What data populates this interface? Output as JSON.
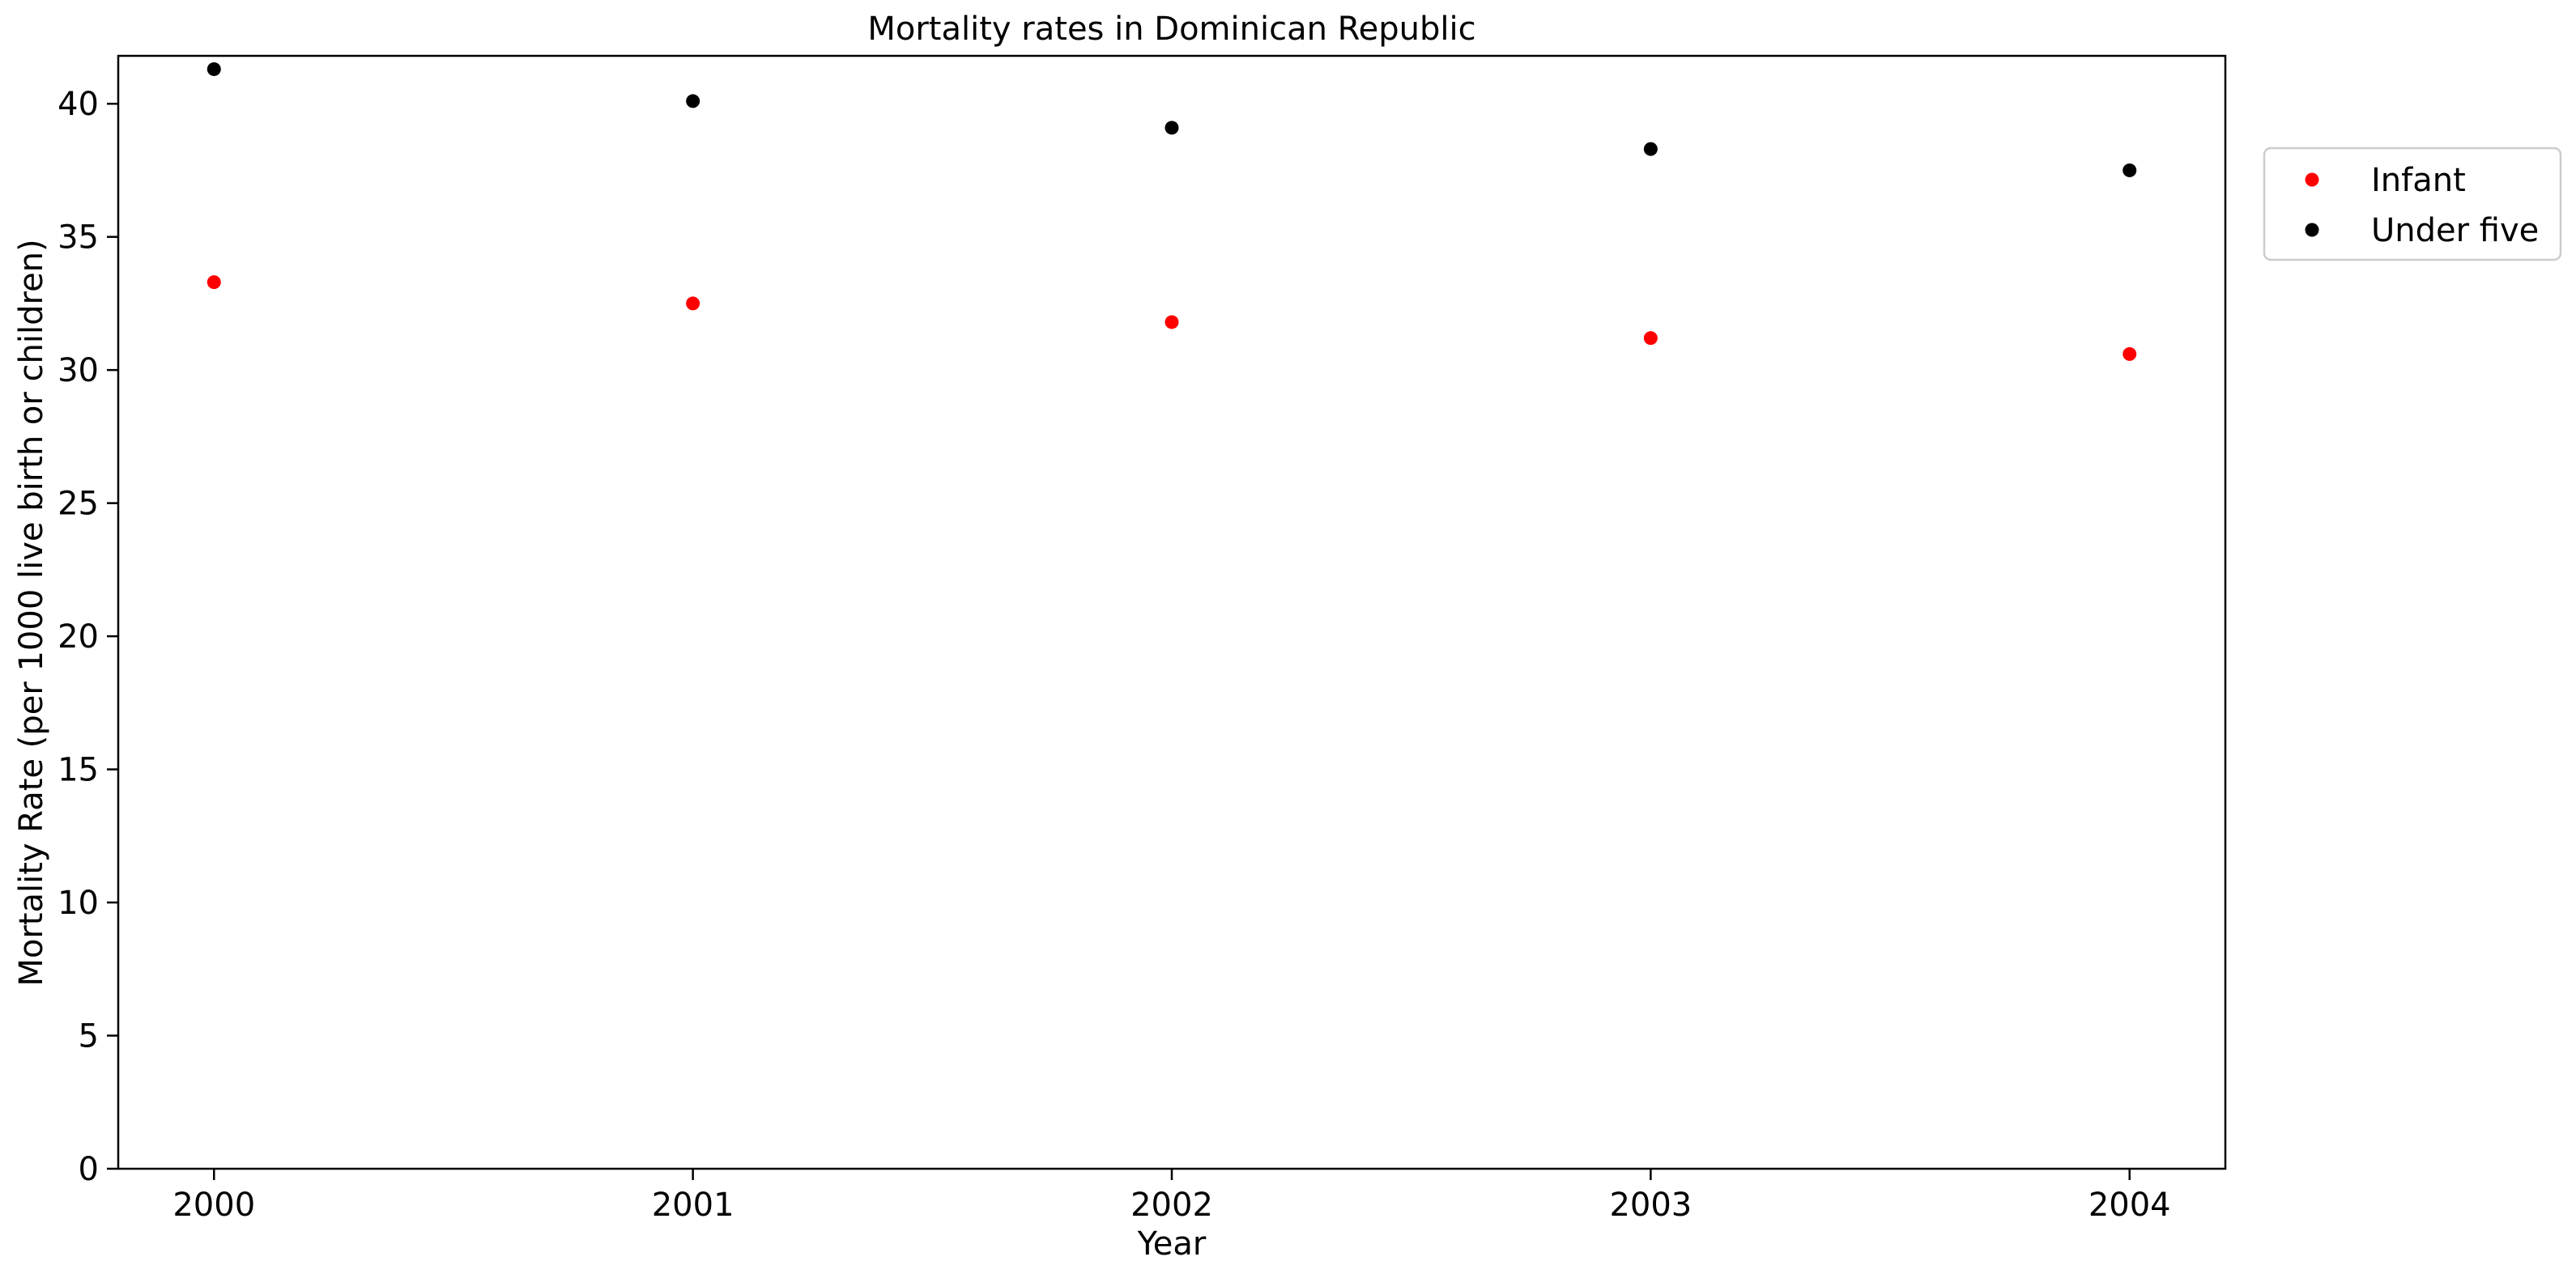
{
  "chart_data": {
    "type": "scatter",
    "title": "Mortality rates in Dominican Republic",
    "xlabel": "Year",
    "ylabel": "Mortality Rate (per 1000 live birth or children)",
    "x": [
      2000,
      2001,
      2002,
      2003,
      2004
    ],
    "x_tick_labels": [
      "2000",
      "2001",
      "2002",
      "2003",
      "2004"
    ],
    "xlim": [
      1999.8,
      2004.2
    ],
    "ylim": [
      0,
      41.8
    ],
    "y_ticks": [
      0,
      5,
      10,
      15,
      20,
      25,
      30,
      35,
      40
    ],
    "y_tick_labels": [
      "0",
      "5",
      "10",
      "15",
      "20",
      "25",
      "30",
      "35",
      "40"
    ],
    "grid": false,
    "legend_position": "outside-right-top",
    "series": [
      {
        "name": "Infant",
        "color": "#ff0000",
        "values": [
          33.3,
          32.5,
          31.8,
          31.2,
          30.6
        ]
      },
      {
        "name": "Under five",
        "color": "#000000",
        "values": [
          41.3,
          40.1,
          39.1,
          38.3,
          37.5
        ]
      }
    ]
  }
}
